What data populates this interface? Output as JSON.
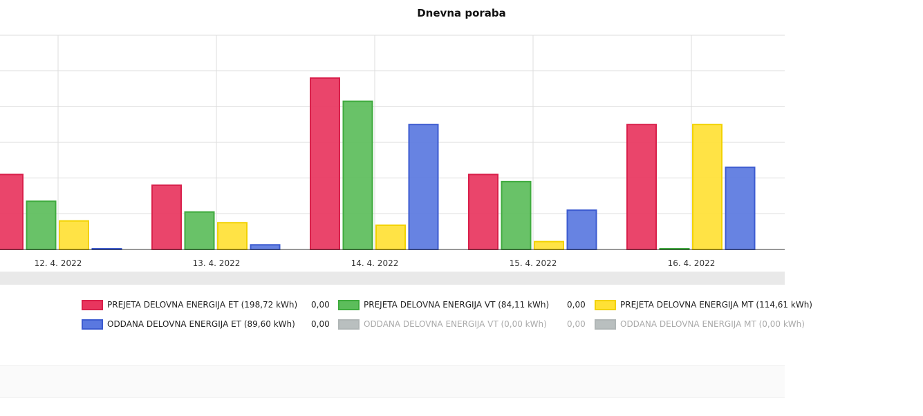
{
  "chart_data": {
    "type": "bar",
    "title": "Dnevna poraba",
    "categories": [
      "12. 4. 2022",
      "13. 4. 2022",
      "14. 4. 2022",
      "15. 4. 2022",
      "16. 4. 2022"
    ],
    "ylim": [
      0,
      6
    ],
    "grid": true,
    "series": [
      {
        "name": "PREJETA DELOVNA ENERGIJA ET",
        "color": "#e8355e",
        "values": [
          2.1,
          1.8,
          4.8,
          2.1,
          3.5
        ]
      },
      {
        "name": "PREJETA DELOVNA ENERGIJA VT",
        "color": "#5cbd5b",
        "values": [
          1.35,
          1.05,
          4.15,
          1.9,
          0.02
        ]
      },
      {
        "name": "PREJETA DELOVNA ENERGIJA MT",
        "color": "#ffe135",
        "values": [
          0.8,
          0.75,
          0.68,
          0.22,
          3.5
        ]
      },
      {
        "name": "ODDANA DELOVNA ENERGIJA ET",
        "color": "#5a78e0",
        "values": [
          0.02,
          0.13,
          3.5,
          1.1,
          2.3
        ]
      }
    ]
  },
  "legend": [
    {
      "label": "PREJETA DELOVNA ENERGIJA ET (198,72 kWh)",
      "value": "0,00",
      "color": "#e8355e",
      "border": "#d9204b",
      "enabled": true
    },
    {
      "label": "PREJETA DELOVNA ENERGIJA VT (84,11 kWh)",
      "value": "0,00",
      "color": "#5cbd5b",
      "border": "#3fab3e",
      "enabled": true
    },
    {
      "label": "PREJETA DELOVNA ENERGIJA MT (114,61 kWh)",
      "value": "",
      "color": "#ffe135",
      "border": "#f2d200",
      "enabled": true
    },
    {
      "label": "ODDANA DELOVNA ENERGIJA ET (89,60 kWh)",
      "value": "0,00",
      "color": "#5a78e0",
      "border": "#3c5bd0",
      "enabled": true
    },
    {
      "label": "ODDANA DELOVNA ENERGIJA VT (0,00 kWh)",
      "value": "0,00",
      "color": "#b9bfbf",
      "border": "#b0b6b6",
      "enabled": false
    },
    {
      "label": "ODDANA DELOVNA ENERGIJA MT (0,00 kWh)",
      "value": "",
      "color": "#b9bfbf",
      "border": "#b0b6b6",
      "enabled": false
    }
  ]
}
